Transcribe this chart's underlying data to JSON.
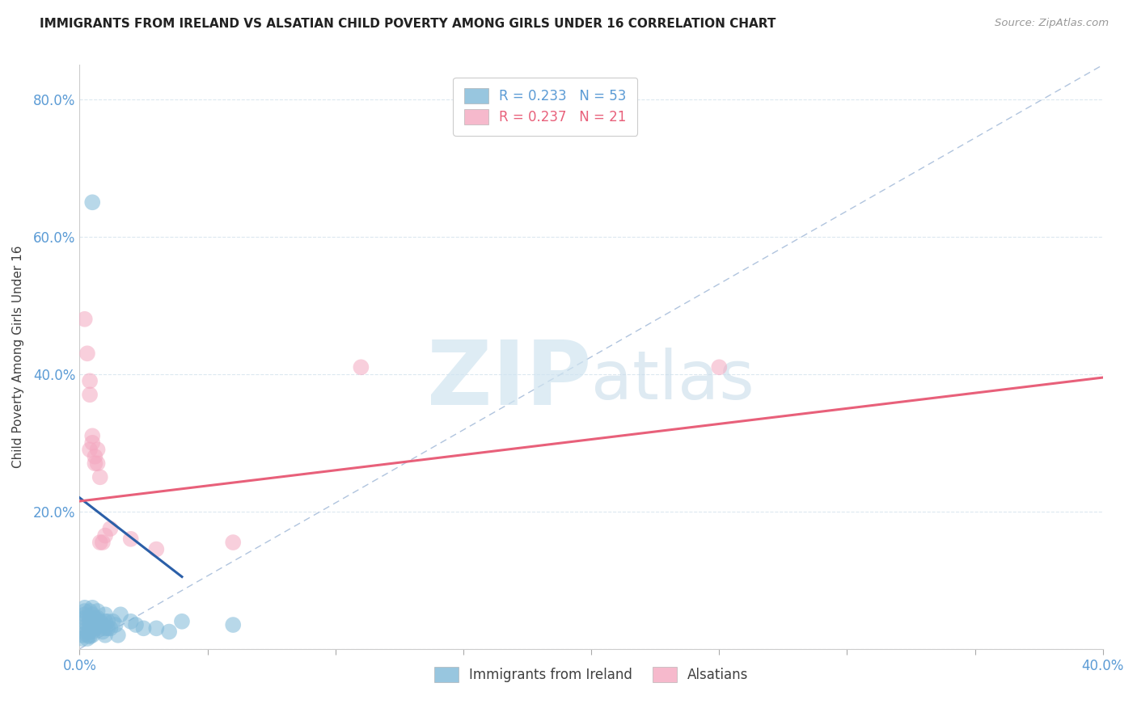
{
  "title": "IMMIGRANTS FROM IRELAND VS ALSATIAN CHILD POVERTY AMONG GIRLS UNDER 16 CORRELATION CHART",
  "source": "Source: ZipAtlas.com",
  "ylabel": "Child Poverty Among Girls Under 16",
  "xlim": [
    0.0,
    0.4
  ],
  "ylim": [
    0.0,
    0.85
  ],
  "xtick_positions": [
    0.0,
    0.05,
    0.1,
    0.15,
    0.2,
    0.25,
    0.3,
    0.35,
    0.4
  ],
  "xticklabels": [
    "0.0%",
    "",
    "",
    "",
    "",
    "",
    "",
    "",
    "40.0%"
  ],
  "ytick_positions": [
    0.0,
    0.2,
    0.4,
    0.6,
    0.8
  ],
  "yticklabels": [
    "",
    "20.0%",
    "40.0%",
    "60.0%",
    "80.0%"
  ],
  "ireland_color": "#7eb8d8",
  "alsatian_color": "#f4a8c0",
  "ireland_line_color": "#2b5fa8",
  "alsatian_line_color": "#e8607a",
  "ref_line_color": "#b0c4de",
  "background_color": "#ffffff",
  "grid_color": "#dce8f0",
  "ireland_scatter": [
    [
      0.001,
      0.02
    ],
    [
      0.001,
      0.015
    ],
    [
      0.002,
      0.06
    ],
    [
      0.002,
      0.045
    ],
    [
      0.002,
      0.05
    ],
    [
      0.002,
      0.055
    ],
    [
      0.002,
      0.04
    ],
    [
      0.003,
      0.035
    ],
    [
      0.003,
      0.03
    ],
    [
      0.003,
      0.025
    ],
    [
      0.003,
      0.02
    ],
    [
      0.003,
      0.015
    ],
    [
      0.004,
      0.055
    ],
    [
      0.004,
      0.045
    ],
    [
      0.004,
      0.04
    ],
    [
      0.004,
      0.03
    ],
    [
      0.004,
      0.025
    ],
    [
      0.004,
      0.018
    ],
    [
      0.005,
      0.06
    ],
    [
      0.005,
      0.05
    ],
    [
      0.005,
      0.04
    ],
    [
      0.005,
      0.03
    ],
    [
      0.005,
      0.025
    ],
    [
      0.005,
      0.02
    ],
    [
      0.006,
      0.045
    ],
    [
      0.006,
      0.035
    ],
    [
      0.006,
      0.03
    ],
    [
      0.007,
      0.055
    ],
    [
      0.007,
      0.045
    ],
    [
      0.007,
      0.035
    ],
    [
      0.008,
      0.04
    ],
    [
      0.008,
      0.03
    ],
    [
      0.009,
      0.035
    ],
    [
      0.009,
      0.025
    ],
    [
      0.01,
      0.05
    ],
    [
      0.01,
      0.04
    ],
    [
      0.01,
      0.03
    ],
    [
      0.01,
      0.02
    ],
    [
      0.011,
      0.04
    ],
    [
      0.011,
      0.03
    ],
    [
      0.012,
      0.03
    ],
    [
      0.013,
      0.04
    ],
    [
      0.014,
      0.035
    ],
    [
      0.015,
      0.02
    ],
    [
      0.016,
      0.05
    ],
    [
      0.02,
      0.04
    ],
    [
      0.022,
      0.035
    ],
    [
      0.025,
      0.03
    ],
    [
      0.03,
      0.03
    ],
    [
      0.035,
      0.025
    ],
    [
      0.005,
      0.65
    ],
    [
      0.04,
      0.04
    ],
    [
      0.06,
      0.035
    ]
  ],
  "alsatian_scatter": [
    [
      0.002,
      0.48
    ],
    [
      0.003,
      0.43
    ],
    [
      0.004,
      0.39
    ],
    [
      0.004,
      0.37
    ],
    [
      0.004,
      0.29
    ],
    [
      0.005,
      0.3
    ],
    [
      0.005,
      0.31
    ],
    [
      0.006,
      0.28
    ],
    [
      0.006,
      0.27
    ],
    [
      0.007,
      0.29
    ],
    [
      0.007,
      0.27
    ],
    [
      0.008,
      0.25
    ],
    [
      0.008,
      0.155
    ],
    [
      0.009,
      0.155
    ],
    [
      0.01,
      0.165
    ],
    [
      0.012,
      0.175
    ],
    [
      0.02,
      0.16
    ],
    [
      0.03,
      0.145
    ],
    [
      0.06,
      0.155
    ],
    [
      0.11,
      0.41
    ],
    [
      0.25,
      0.41
    ]
  ],
  "ireland_line": [
    [
      0.0,
      0.22
    ],
    [
      0.04,
      0.105
    ]
  ],
  "alsatian_line": [
    [
      0.0,
      0.215
    ],
    [
      0.4,
      0.395
    ]
  ],
  "watermark_zip": "ZIP",
  "watermark_atlas": "atlas"
}
